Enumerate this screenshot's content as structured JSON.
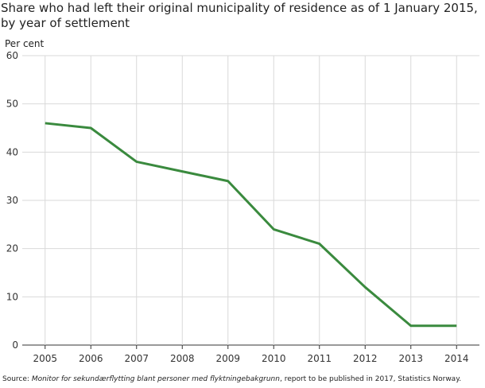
{
  "chart_data": {
    "type": "line",
    "title": "Share who had left their original municipality of residence as of 1 January 2015, by year of settlement",
    "ylabel": "Per cent",
    "xlabel": "",
    "categories": [
      "2005",
      "2006",
      "2007",
      "2008",
      "2009",
      "2010",
      "2011",
      "2012",
      "2013",
      "2014"
    ],
    "series": [
      {
        "values": [
          46,
          45,
          38,
          36,
          34,
          24,
          21,
          12,
          4,
          4
        ],
        "color": "#3a8a3e"
      }
    ],
    "ylim": [
      0,
      60
    ],
    "yticks": [
      0,
      10,
      20,
      30,
      40,
      50,
      60
    ],
    "grid": true,
    "legend": "none"
  },
  "source": {
    "prefix": "Source: ",
    "italic": "Monitor for sekundærflytting blant personer med flyktningebakgrunn",
    "suffix": ", report to be published in 2017, Statistics Norway."
  }
}
